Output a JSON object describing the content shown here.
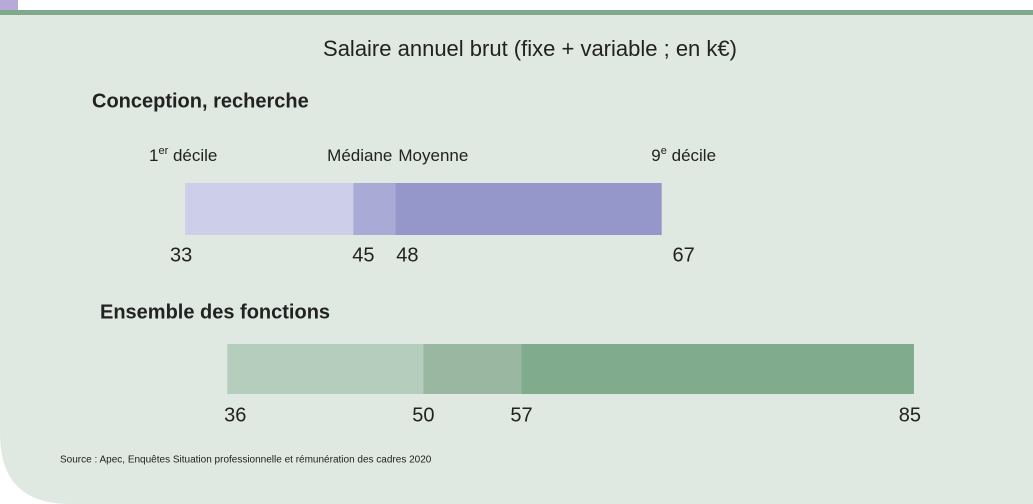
{
  "chart_data": {
    "type": "range-bar",
    "title": "Salaire annuel brut (fixe + variable ; en k€)",
    "xlim": [
      20,
      90
    ],
    "groups": [
      {
        "name": "Conception, recherche",
        "markers": [
          {
            "text": "1",
            "sup": "er",
            "after": " décile"
          },
          {
            "text": "Médiane"
          },
          {
            "text": "Moyenne"
          },
          {
            "text": "9",
            "sup": "e",
            "after": " décile"
          }
        ],
        "values": [
          33,
          45,
          48,
          67
        ],
        "colors": [
          "#cdcfea",
          "#aaaad6",
          "#9597cb"
        ]
      },
      {
        "name": "Ensemble des fonctions",
        "values": [
          36,
          50,
          57,
          85
        ],
        "colors": [
          "#b5cdbd",
          "#9ab8a1",
          "#80ab8d"
        ]
      }
    ],
    "source": "Source : Apec, Enquêtes Situation professionnelle et rémunération des cadres 2020"
  }
}
